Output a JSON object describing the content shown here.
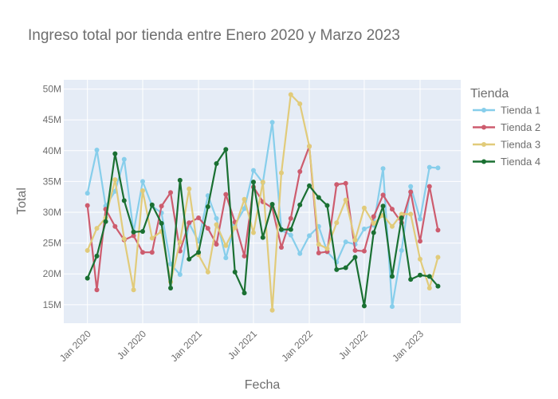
{
  "chart_data": {
    "type": "line",
    "title": "Ingreso total por tienda entre Enero 2020 y Marzo 2023",
    "xlabel": "Fecha",
    "ylabel": "Total",
    "legend_title": "Tienda",
    "legend_position": "right",
    "grid": true,
    "ylim": [
      12000000,
      51500000
    ],
    "xlim": [
      "2019-10-15",
      "2023-05-15"
    ],
    "y_ticks": [
      15000000,
      20000000,
      25000000,
      30000000,
      35000000,
      40000000,
      45000000,
      50000000
    ],
    "y_tick_labels": [
      "15M",
      "20M",
      "25M",
      "30M",
      "35M",
      "40M",
      "45M",
      "50M"
    ],
    "x_ticks": [
      "2020-01-01",
      "2020-07-01",
      "2021-01-01",
      "2021-07-01",
      "2022-01-01",
      "2022-07-01",
      "2023-01-01"
    ],
    "x_tick_labels": [
      "Jan 2020",
      "Jul 2020",
      "Jan 2021",
      "Jul 2021",
      "Jan 2022",
      "Jul 2022",
      "Jan 2023"
    ],
    "x": [
      "2020-01",
      "2020-02",
      "2020-03",
      "2020-04",
      "2020-05",
      "2020-06",
      "2020-07",
      "2020-08",
      "2020-09",
      "2020-10",
      "2020-11",
      "2020-12",
      "2021-01",
      "2021-02",
      "2021-03",
      "2021-04",
      "2021-05",
      "2021-06",
      "2021-07",
      "2021-08",
      "2021-09",
      "2021-10",
      "2021-11",
      "2021-12",
      "2022-01",
      "2022-02",
      "2022-03",
      "2022-04",
      "2022-05",
      "2022-06",
      "2022-07",
      "2022-08",
      "2022-09",
      "2022-10",
      "2022-11",
      "2022-12",
      "2023-01",
      "2023-02",
      "2023-03"
    ],
    "series": [
      {
        "name": "Tienda 1",
        "color": "#87ceeb",
        "values": [
          33100000,
          40100000,
          31000000,
          33400000,
          38600000,
          26800000,
          35000000,
          31000000,
          29900000,
          21600000,
          19900000,
          28200000,
          25300000,
          32700000,
          29000000,
          22600000,
          28000000,
          30600000,
          36800000,
          34800000,
          44600000,
          27100000,
          26300000,
          23300000,
          26200000,
          27700000,
          23600000,
          21900000,
          25200000,
          24800000,
          27300000,
          27900000,
          37100000,
          14700000,
          23800000,
          34200000,
          28900000,
          37300000,
          37200000
        ]
      },
      {
        "name": "Tienda 2",
        "color": "#cd5c6e",
        "values": [
          31100000,
          17400000,
          30500000,
          27700000,
          25500000,
          26200000,
          23500000,
          23500000,
          31000000,
          33200000,
          23700000,
          28300000,
          29100000,
          27400000,
          24800000,
          32900000,
          28400000,
          22900000,
          34100000,
          31700000,
          30700000,
          24300000,
          29000000,
          36600000,
          40700000,
          23400000,
          23600000,
          34500000,
          34700000,
          23800000,
          23700000,
          29300000,
          32800000,
          30500000,
          28300000,
          33300000,
          25300000,
          34200000,
          27100000
        ]
      },
      {
        "name": "Tienda 3",
        "color": "#e1cb7a",
        "values": [
          23800000,
          27400000,
          29100000,
          35300000,
          25700000,
          17400000,
          33500000,
          25800000,
          26900000,
          18700000,
          25200000,
          33800000,
          23100000,
          20300000,
          28000000,
          24600000,
          27500000,
          32100000,
          26700000,
          34900000,
          14100000,
          36400000,
          49100000,
          47600000,
          40700000,
          24800000,
          24100000,
          28300000,
          32000000,
          25500000,
          30700000,
          28200000,
          29500000,
          27700000,
          29700000,
          29700000,
          22400000,
          17700000,
          22700000
        ]
      },
      {
        "name": "Tienda 4",
        "color": "#1a7032",
        "values": [
          19300000,
          22900000,
          28500000,
          39500000,
          31900000,
          26800000,
          26900000,
          31200000,
          28200000,
          17700000,
          35200000,
          22400000,
          23500000,
          30900000,
          37900000,
          40200000,
          20300000,
          16900000,
          34900000,
          25900000,
          31300000,
          27200000,
          27200000,
          31200000,
          34300000,
          32400000,
          31100000,
          20700000,
          21000000,
          22700000,
          14800000,
          26700000,
          31000000,
          19600000,
          29100000,
          19100000,
          19800000,
          19600000,
          18000000
        ]
      }
    ]
  }
}
